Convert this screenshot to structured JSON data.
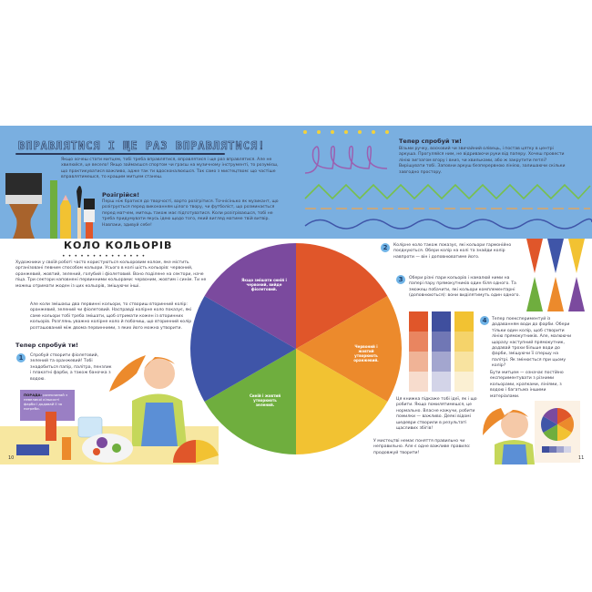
{
  "top_left": {
    "title": "ВПРАВЛЯТИСЯ І ЩЕ РАЗ ВПРАВЛЯТИСЯ!",
    "intro": "Якщо хочеш стати митцем, тобі треба вправлятися, вправлятися і ще раз вправлятися. Але не хвилюйся, це весело! Якщо займаєшся спортом чи граєш на музичному інструменті, то розумієш, що практикуватися важливо, адже так ти вдосконалюєшся. Так само з мистецтвом: що частіше вправлятимешся, то кращим митцем станеш.",
    "warmup_heading": "Розігрійся!",
    "warmup_text": "Перш ніж братися до творчості, варто розігрітися. Точнісінько як музикант, що розігрується перед виконанням цілого твору, чи футболіст, що розминається перед матчем, митець також має підготуватися. Коли розігріваєшся, тобі не треба придумувати якусь ідею щодо того, який вигляд матиме твій витвір. Навпаки, здивуй себе!"
  },
  "top_right": {
    "heading": "Тепер спробуй ти!",
    "text": "Візьми ручку, восковий чи звичайний олівець, і постав цятку в центрі аркуша. Прогуляйся ним, не відриваючи руки від паперу. Хочеш провести лінію зигзагом вгору і вниз, чи хвильками, або ж закрутити петлі? Вирішувати тобі. Заповни аркуш безперервною лінією, залишаючи скільки завгодно простору."
  },
  "left_page": {
    "title": "КОЛО КОЛЬОРІВ",
    "para1": "Художники у своїй роботі часто користуються кольоровим колом, яке містить організовані певним способом кольори. Усього в колі шість кольорів: червоний, оранжевий, жовтий, зелений, голубий і фіолетовий. Воно поділене на сектори, наче піца. Три сектори наповнені первинними кольорами: червоним, жовтим і синім. Ти не можеш отримати жоден із цих кольорів, змішуючи інші.",
    "para2": "Але коли змішаєш два первинні кольори, то створиш вторинний колір: оранжевий, зелений чи фіолетовий. Насправді колірне коло показує, які саме кольори тобі треба змішати, щоб отримати кожен із вторинних кольорів. Розглянь уважно колірне коло й побачиш, що вторинний колір розташований між двома первинними, з яких його можна утворити.",
    "try_heading": "Тепер спробуй ти!",
    "step1_num": "1",
    "step1": "Спробуй створити фіолетовий, зелений та оранжевий! Тобі знадобиться папір, палітра, пензлик і плакатні фарби, а також баночка з водою.",
    "tip_label": "ПОРАДА:",
    "tip_text": "розпочинай з невеликої кількості фарби і додавай її за потреби.",
    "page_number": "10"
  },
  "wheel": {
    "colors": [
      "#e0562a",
      "#ec8a2c",
      "#f2c232",
      "#6fae3e",
      "#3f55a8",
      "#7b4a9e"
    ],
    "label_purple": "Якщо змішати синій і червоний, вийде фіолетовий.",
    "label_orange": "Червоний і жовтий утворюють оранжевий.",
    "label_green": "Синій і жовтий утворюють зелений."
  },
  "right_page": {
    "step2_num": "2",
    "step2": "Колірне коло також показує, які кольори гармонійно поєднуються. Обери колір на колі та знайди колір навпроти — він і доповнюватиме його.",
    "step3_num": "3",
    "step3": "Обери різні пари кольорів і намалюй ними на папері пару прямокутників один біля одного. Та зможеш побачити, які кольори комплементарні (доповнюються): вони виділятимуть один одного.",
    "step4_num": "4",
    "step4": "Тепер поекспериментуй із додаванням води до фарби. Обери тільки один колір, щоб створити лінію прямокутників. Але, малюючи щоразу наступний прямокутник, додавай трохи більше води до фарби, змішуючи її спершу на палітрі. Як змінюється при цьому колір?",
    "artist_note": "Бути митцем — означає постійно експериментувати з різними кольорами, крапками, лініями, з водою і багатьма іншими матеріалами.",
    "mistakes": "Ця книжка підкаже тобі ідеї, як і що робити. Якщо помилятимешся, це нормально. Власне кажучи, робити помилки — важливо. Деякі відомі шедеври створили в результаті щасливих збігів!",
    "rule": "У мистецтві немає поняття правильно чи неправильно. Але є одне важливе правило: продовжуй творити!",
    "triangles_top": [
      "#e0562a",
      "#3f55a8",
      "#f2c232"
    ],
    "triangles_bottom": [
      "#6fae3e",
      "#ec8a2c",
      "#7b4a9e"
    ],
    "swatches": [
      [
        "#e0562a",
        "#e98560",
        "#f0b396",
        "#f7dccd"
      ],
      [
        "#3f4f9e",
        "#7077b5",
        "#a3a6cf",
        "#d3d4e8"
      ],
      [
        "#f2c232",
        "#f5d36a",
        "#f8e3a0",
        "#fbf0d3"
      ]
    ],
    "page_number": "11"
  }
}
